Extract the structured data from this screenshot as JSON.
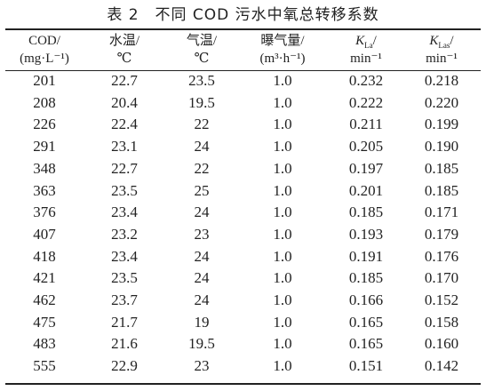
{
  "title": "表 2　不同 COD 污水中氧总转移系数",
  "table": {
    "header": [
      {
        "line1": {
          "text": "COD/"
        },
        "line2": "(mg·L⁻¹)"
      },
      {
        "line1": {
          "text": "水温/"
        },
        "line2": "℃"
      },
      {
        "line1": {
          "text": "气温/"
        },
        "line2": "℃"
      },
      {
        "line1": {
          "text": "曝气量/"
        },
        "line2": "(m³·h⁻¹)"
      },
      {
        "line1": {
          "symbol": "K",
          "sub": "La",
          "suffix": "/"
        },
        "line2": "min⁻¹"
      },
      {
        "line1": {
          "symbol": "K",
          "sub": "Las",
          "suffix": "/"
        },
        "line2": "min⁻¹"
      }
    ],
    "rows": [
      [
        "201",
        "22.7",
        "23.5",
        "1.0",
        "0.232",
        "0.218"
      ],
      [
        "208",
        "20.4",
        "19.5",
        "1.0",
        "0.222",
        "0.220"
      ],
      [
        "226",
        "22.4",
        "22",
        "1.0",
        "0.211",
        "0.199"
      ],
      [
        "291",
        "23.1",
        "24",
        "1.0",
        "0.205",
        "0.190"
      ],
      [
        "348",
        "22.7",
        "22",
        "1.0",
        "0.197",
        "0.185"
      ],
      [
        "363",
        "23.5",
        "25",
        "1.0",
        "0.201",
        "0.185"
      ],
      [
        "376",
        "23.4",
        "24",
        "1.0",
        "0.185",
        "0.171"
      ],
      [
        "407",
        "23.2",
        "23",
        "1.0",
        "0.193",
        "0.179"
      ],
      [
        "418",
        "23.4",
        "24",
        "1.0",
        "0.191",
        "0.176"
      ],
      [
        "421",
        "23.5",
        "24",
        "1.0",
        "0.185",
        "0.170"
      ],
      [
        "462",
        "23.7",
        "24",
        "1.0",
        "0.166",
        "0.152"
      ],
      [
        "475",
        "21.7",
        "19",
        "1.0",
        "0.165",
        "0.158"
      ],
      [
        "483",
        "21.6",
        "19.5",
        "1.0",
        "0.165",
        "0.160"
      ],
      [
        "555",
        "22.9",
        "23",
        "1.0",
        "0.151",
        "0.142"
      ]
    ]
  }
}
